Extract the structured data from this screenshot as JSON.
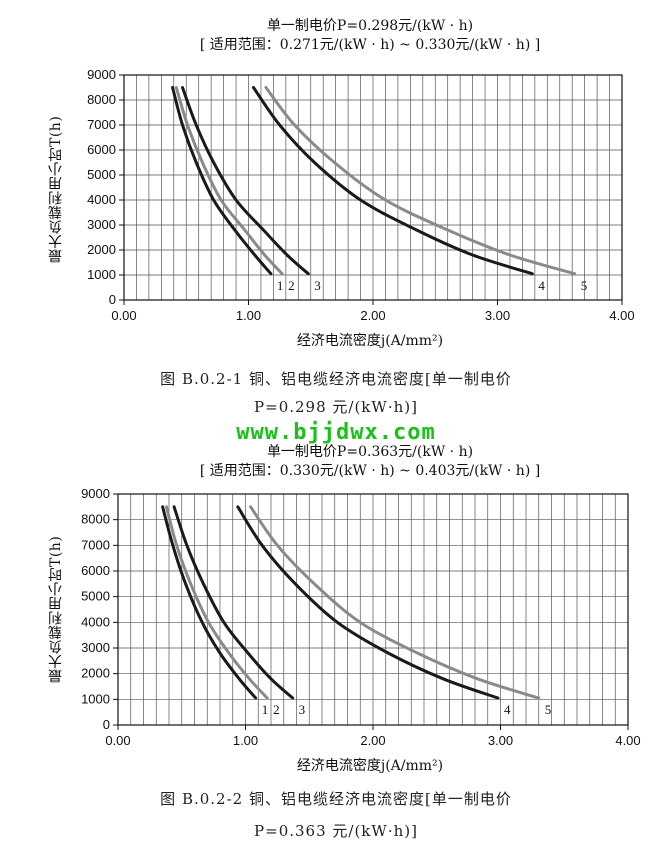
{
  "watermark": "www.bjjdwx.com",
  "chart_data": [
    {
      "type": "line",
      "title": "单一制电价P=0.298元/(kW · h)",
      "subtitle": "[ 适用范围：0.271元/(kW · h) ~ 0.330元/(kW · h) ]",
      "xlabel": "经济电流密度j(A/mm²)",
      "ylabel": "最大负载利用小时T(h)",
      "xlim": [
        0,
        4
      ],
      "ylim": [
        0,
        9000
      ],
      "xticks": [
        "0.00",
        "1.00",
        "2.00",
        "3.00",
        "4.00"
      ],
      "yticks": [
        "0",
        "1000",
        "2000",
        "3000",
        "4000",
        "5000",
        "6000",
        "7000",
        "8000",
        "9000"
      ],
      "grid": true,
      "caption_line1": "图 B.0.2-1  铜、铝电缆经济电流密度[单一制电价",
      "caption_line2": "P=0.298 元/(kW·h)]",
      "series": [
        {
          "label": "1",
          "color": "#1a1a1a",
          "points": [
            [
              0.39,
              8500
            ],
            [
              0.47,
              7000
            ],
            [
              0.58,
              5500
            ],
            [
              0.72,
              4000
            ],
            [
              0.89,
              2800
            ],
            [
              1.05,
              1800
            ],
            [
              1.18,
              1050
            ]
          ]
        },
        {
          "label": "2",
          "color": "#8a8a8a",
          "points": [
            [
              0.42,
              8500
            ],
            [
              0.51,
              7000
            ],
            [
              0.63,
              5500
            ],
            [
              0.78,
              4000
            ],
            [
              0.97,
              2800
            ],
            [
              1.13,
              1800
            ],
            [
              1.27,
              1050
            ]
          ]
        },
        {
          "label": "3",
          "color": "#1a1a1a",
          "points": [
            [
              0.47,
              8500
            ],
            [
              0.58,
              7000
            ],
            [
              0.72,
              5500
            ],
            [
              0.9,
              4000
            ],
            [
              1.12,
              2800
            ],
            [
              1.31,
              1800
            ],
            [
              1.48,
              1050
            ]
          ]
        },
        {
          "label": "4",
          "color": "#1a1a1a",
          "points": [
            [
              1.04,
              8500
            ],
            [
              1.25,
              7000
            ],
            [
              1.53,
              5500
            ],
            [
              1.9,
              4000
            ],
            [
              2.35,
              2800
            ],
            [
              2.8,
              1800
            ],
            [
              3.28,
              1050
            ]
          ]
        },
        {
          "label": "5",
          "color": "#8a8a8a",
          "points": [
            [
              1.14,
              8500
            ],
            [
              1.37,
              7000
            ],
            [
              1.69,
              5500
            ],
            [
              2.1,
              4000
            ],
            [
              2.6,
              2800
            ],
            [
              3.1,
              1800
            ],
            [
              3.62,
              1050
            ]
          ]
        }
      ]
    },
    {
      "type": "line",
      "title": "单一制电价P=0.363元/(kW · h)",
      "subtitle": "[ 适用范围：0.330元/(kW · h) ~ 0.403元/(kW · h) ]",
      "xlabel": "经济电流密度j(A/mm²)",
      "ylabel": "最大负载利用小时T(h)",
      "xlim": [
        0,
        4
      ],
      "ylim": [
        0,
        9000
      ],
      "xticks": [
        "0.00",
        "1.00",
        "2.00",
        "3.00",
        "4.00"
      ],
      "yticks": [
        "0",
        "1000",
        "2000",
        "3000",
        "4000",
        "5000",
        "6000",
        "7000",
        "8000",
        "9000"
      ],
      "grid": true,
      "caption_line1": "图 B.0.2-2  铜、铝电缆经济电流密度[单一制电价",
      "caption_line2": "P=0.363 元/(kW·h)]",
      "series": [
        {
          "label": "1",
          "color": "#1a1a1a",
          "points": [
            [
              0.35,
              8500
            ],
            [
              0.43,
              7000
            ],
            [
              0.53,
              5500
            ],
            [
              0.66,
              4000
            ],
            [
              0.8,
              2800
            ],
            [
              0.95,
              1800
            ],
            [
              1.08,
              1050
            ]
          ]
        },
        {
          "label": "2",
          "color": "#8a8a8a",
          "points": [
            [
              0.38,
              8500
            ],
            [
              0.46,
              7000
            ],
            [
              0.57,
              5500
            ],
            [
              0.71,
              4000
            ],
            [
              0.87,
              2800
            ],
            [
              1.03,
              1800
            ],
            [
              1.17,
              1050
            ]
          ]
        },
        {
          "label": "3",
          "color": "#1a1a1a",
          "points": [
            [
              0.44,
              8500
            ],
            [
              0.54,
              7000
            ],
            [
              0.67,
              5500
            ],
            [
              0.83,
              4000
            ],
            [
              1.02,
              2800
            ],
            [
              1.2,
              1800
            ],
            [
              1.37,
              1050
            ]
          ]
        },
        {
          "label": "4",
          "color": "#1a1a1a",
          "points": [
            [
              0.94,
              8500
            ],
            [
              1.13,
              7000
            ],
            [
              1.39,
              5500
            ],
            [
              1.72,
              4000
            ],
            [
              2.12,
              2800
            ],
            [
              2.55,
              1800
            ],
            [
              2.98,
              1050
            ]
          ]
        },
        {
          "label": "5",
          "color": "#8a8a8a",
          "points": [
            [
              1.04,
              8500
            ],
            [
              1.25,
              7000
            ],
            [
              1.54,
              5500
            ],
            [
              1.9,
              4000
            ],
            [
              2.35,
              2800
            ],
            [
              2.82,
              1800
            ],
            [
              3.3,
              1050
            ]
          ]
        }
      ]
    }
  ]
}
